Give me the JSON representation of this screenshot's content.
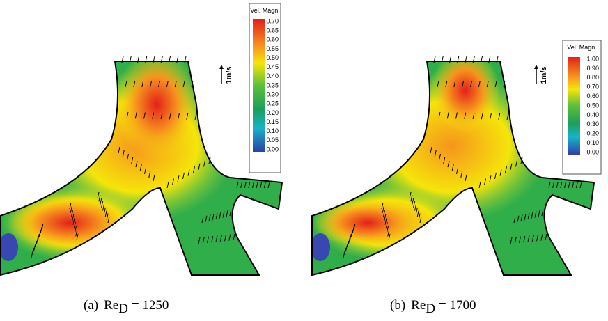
{
  "panels": [
    {
      "caption": {
        "label": "(a)",
        "symbol": "Re",
        "subscript": "D",
        "value": "= 1250"
      },
      "scale_label": "1m/s",
      "colorbar": {
        "title": "Vel. Magn.",
        "ticks": [
          "0.70",
          "0.65",
          "0.60",
          "0.55",
          "0.50",
          "0.45",
          "0.40",
          "0.35",
          "0.30",
          "0.25",
          "0.20",
          "0.15",
          "0.10",
          "0.05",
          "0.00"
        ]
      }
    },
    {
      "caption": {
        "label": "(b)",
        "symbol": "Re",
        "subscript": "D",
        "value": "= 1700"
      },
      "scale_label": "1m/s",
      "colorbar": {
        "title": "Vel. Magn.",
        "ticks": [
          "1.00",
          "0.90",
          "0.80",
          "0.70",
          "0.60",
          "0.50",
          "0.40",
          "0.30",
          "0.20",
          "0.10",
          "0.00"
        ]
      }
    }
  ]
}
